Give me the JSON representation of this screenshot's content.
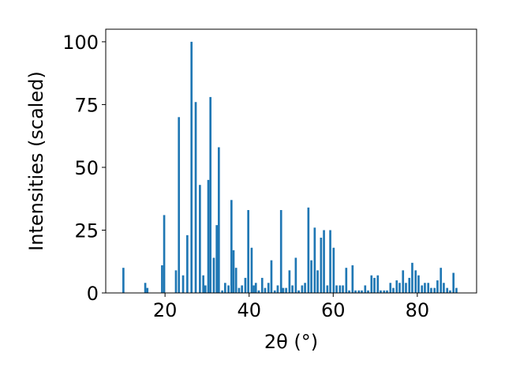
{
  "chart_data": {
    "type": "bar",
    "xlabel": "2θ (°)",
    "ylabel": "Intensities (scaled)",
    "xlim": [
      5.9,
      94.1
    ],
    "ylim": [
      0,
      105
    ],
    "xticks": [
      20,
      40,
      60,
      80
    ],
    "yticks": [
      0,
      25,
      50,
      75,
      100
    ],
    "bar_color": "#1f77b4",
    "bar_width": 0.5,
    "grid": false,
    "x": [
      10.1,
      15.3,
      15.8,
      19.3,
      19.8,
      22.6,
      23.3,
      24.3,
      25.3,
      26.3,
      27.3,
      28.3,
      29.1,
      29.6,
      30.3,
      30.8,
      31.6,
      32.3,
      32.8,
      33.6,
      34.3,
      35.1,
      35.8,
      36.3,
      36.9,
      37.6,
      38.3,
      39.1,
      39.8,
      40.6,
      41.1,
      41.6,
      42.3,
      43.1,
      43.8,
      44.6,
      45.3,
      46.1,
      46.8,
      47.6,
      48.1,
      48.8,
      49.6,
      50.3,
      51.1,
      51.8,
      52.6,
      53.3,
      54.1,
      54.8,
      55.6,
      56.3,
      57.1,
      57.8,
      58.6,
      59.3,
      60.1,
      60.8,
      61.6,
      62.3,
      63.1,
      63.8,
      64.6,
      65.3,
      66.1,
      66.8,
      67.6,
      68.3,
      69.1,
      69.8,
      70.6,
      71.3,
      72.1,
      72.8,
      73.6,
      74.3,
      75.1,
      75.8,
      76.6,
      77.3,
      78.1,
      78.8,
      79.6,
      80.3,
      81.1,
      81.8,
      82.6,
      83.3,
      84.1,
      84.8,
      85.6,
      86.3,
      87.1,
      87.8,
      88.6,
      89.3
    ],
    "values": [
      10,
      4,
      2,
      11,
      31,
      9,
      70,
      7,
      23,
      100,
      76,
      43,
      7,
      3,
      45,
      78,
      14,
      27,
      58,
      1,
      4,
      3,
      37,
      17,
      10,
      2,
      3,
      6,
      33,
      18,
      3,
      4,
      1,
      6,
      2,
      4,
      13,
      1,
      3,
      33,
      2,
      2,
      9,
      3,
      14,
      1,
      3,
      4,
      34,
      13,
      26,
      9,
      22,
      25,
      3,
      25,
      18,
      3,
      3,
      3,
      10,
      1,
      11,
      1,
      1,
      1,
      3,
      1,
      7,
      6,
      7,
      1,
      1,
      1,
      4,
      2,
      5,
      4,
      9,
      4,
      6,
      12,
      9,
      7,
      3,
      4,
      4,
      2,
      2,
      5,
      10,
      4,
      2,
      1,
      8,
      2
    ]
  }
}
